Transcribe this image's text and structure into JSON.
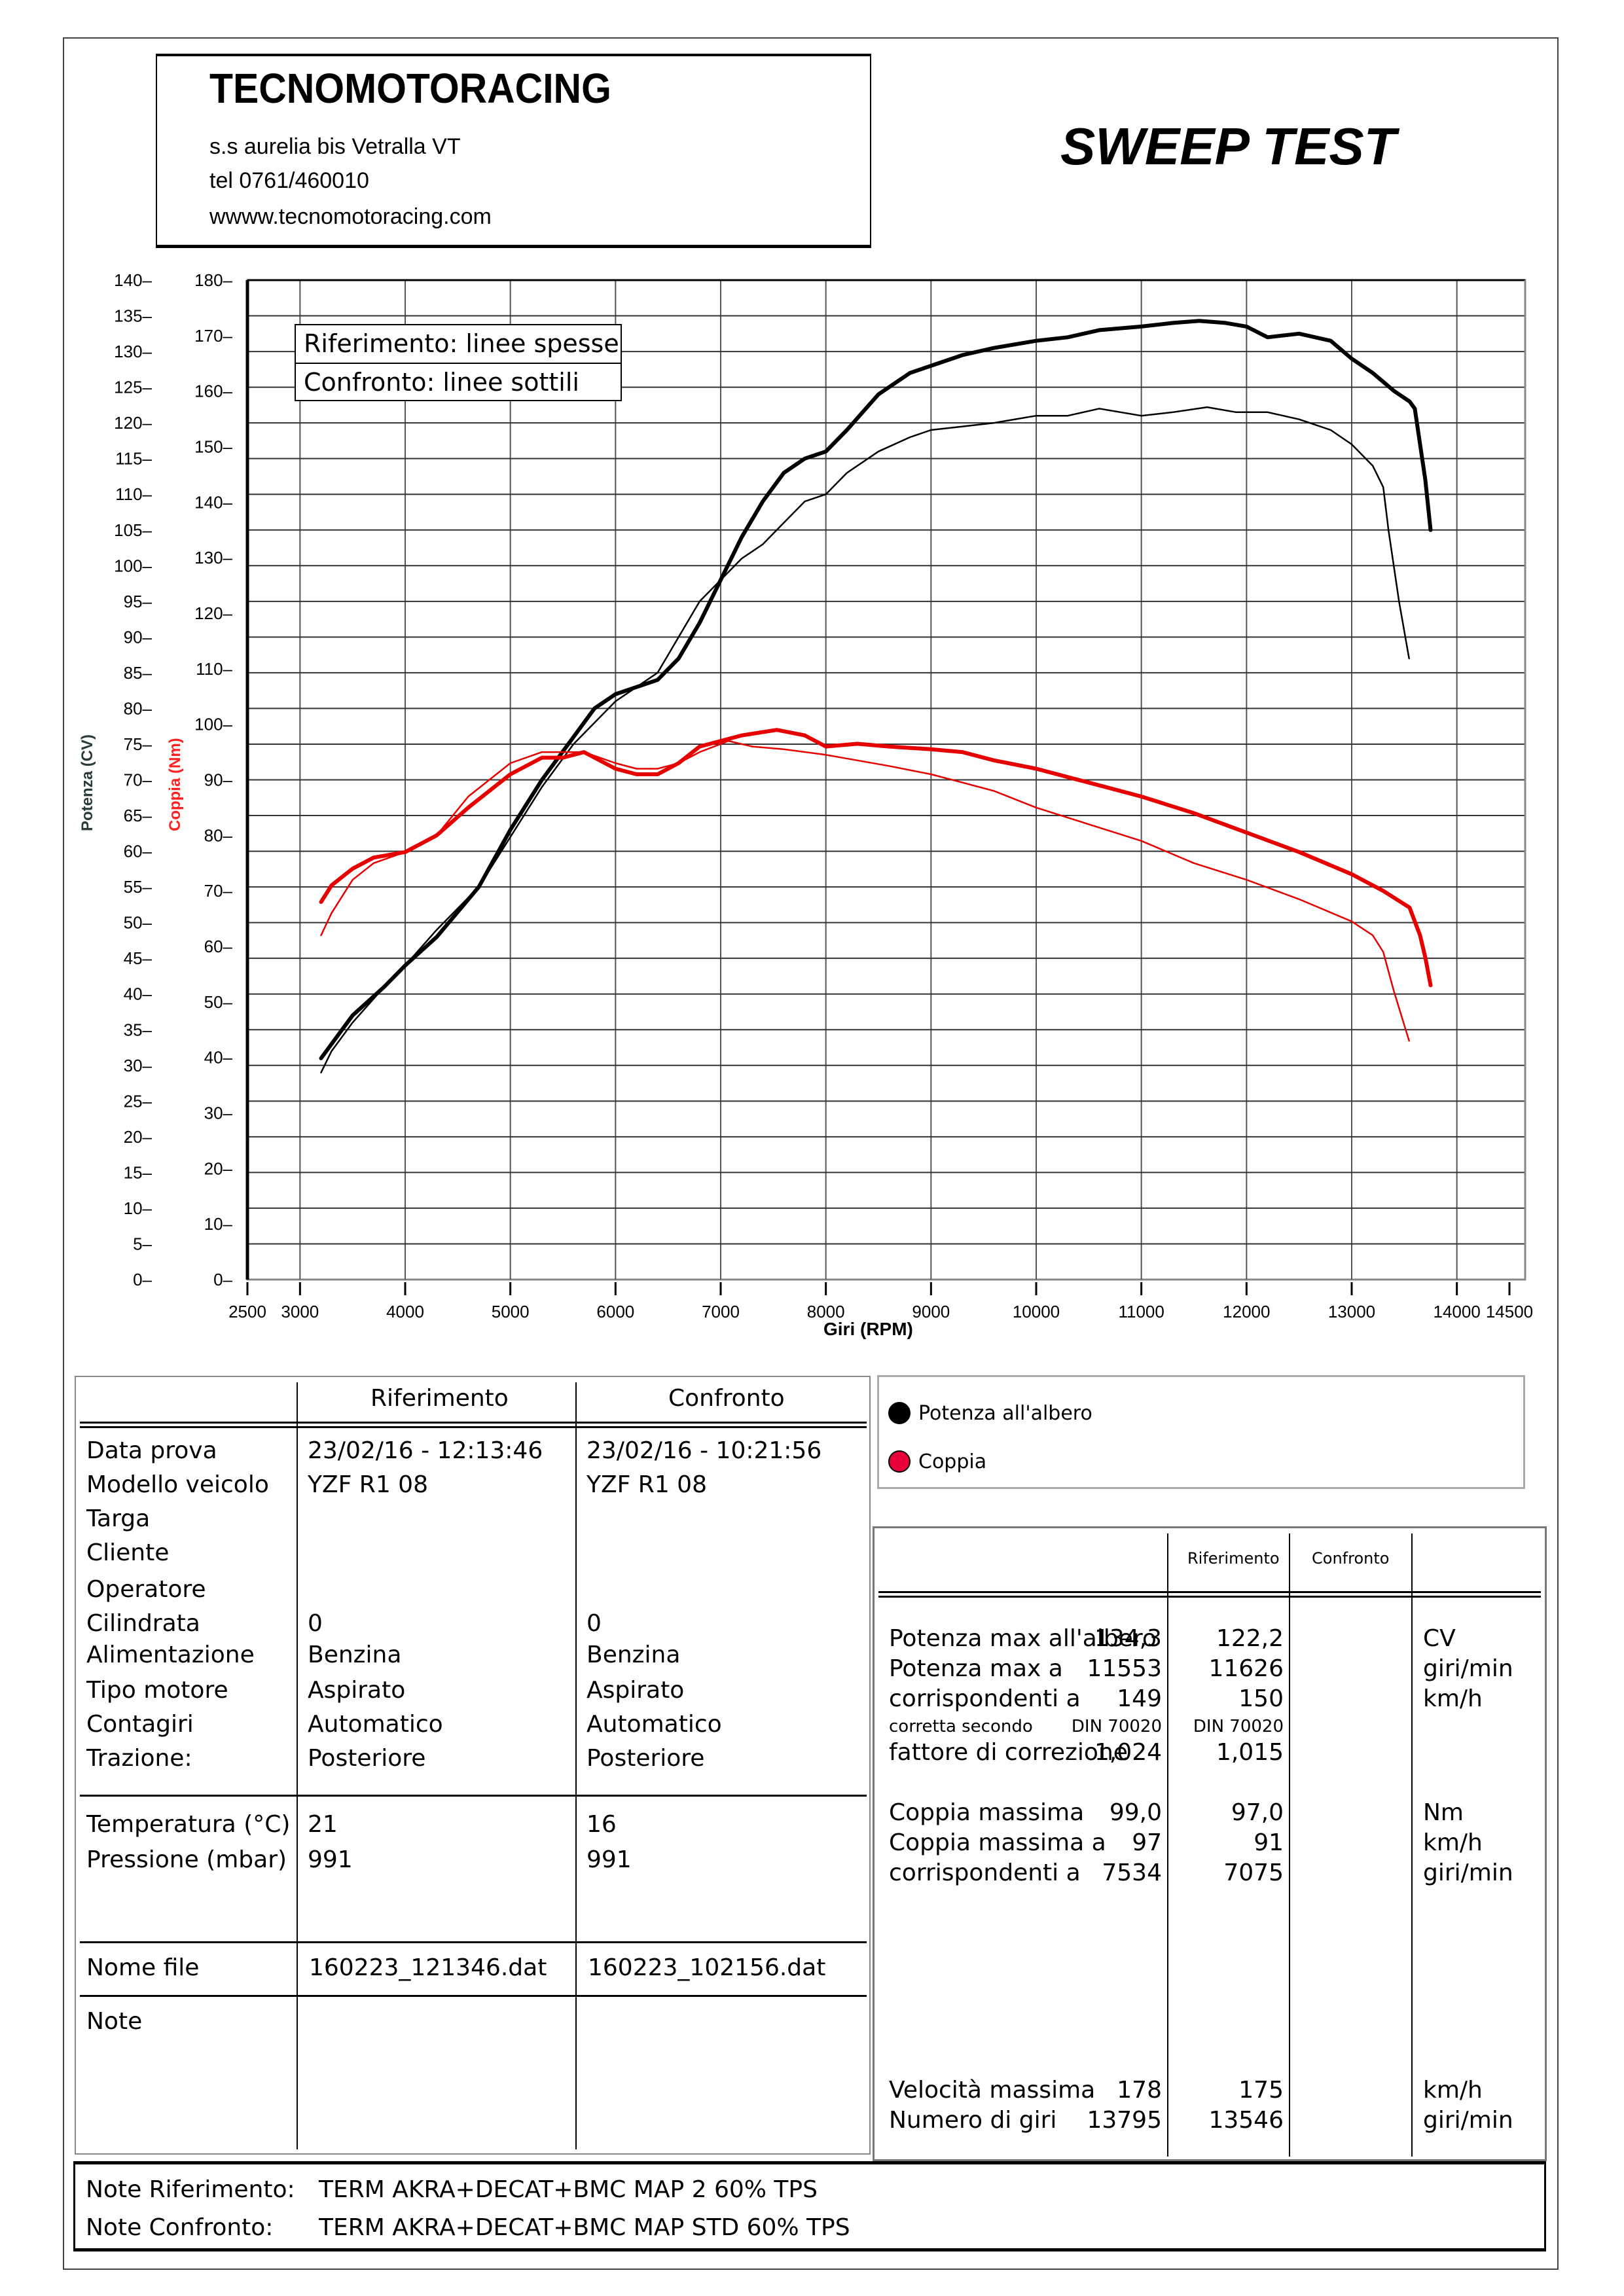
{
  "header": {
    "company_name": "TECNOMOTORACING",
    "address": "s.s aurelia bis  Vetralla  VT",
    "phone": "tel 0761/460010",
    "website": "wwww.tecnomotoracing.com",
    "report_title": "SWEEP TEST"
  },
  "chart_data": {
    "type": "line",
    "title": "SWEEP TEST",
    "xlabel": "Giri (RPM)",
    "ylabel_left": "Potenza (CV)",
    "ylabel_right": "Coppia (Nm)",
    "xlim": [
      2500,
      14500
    ],
    "ylim_power": [
      0,
      140
    ],
    "ylim_torque": [
      0,
      180
    ],
    "grid": true,
    "x_ticks": [
      2500,
      3000,
      4000,
      5000,
      6000,
      7000,
      8000,
      9000,
      10000,
      11000,
      12000,
      13000,
      14000,
      14500
    ],
    "x_tick_labels": [
      "2500",
      "3000",
      "4000",
      "5000",
      "6000",
      "7000",
      "8000",
      "9000",
      "10000",
      "11000",
      "12000",
      "13000",
      "14000",
      "14500"
    ],
    "y_ticks_power": [
      0,
      5,
      10,
      15,
      20,
      25,
      30,
      35,
      40,
      45,
      50,
      55,
      60,
      65,
      70,
      75,
      80,
      85,
      90,
      95,
      100,
      105,
      110,
      115,
      120,
      125,
      130,
      135,
      140
    ],
    "y_ticks_torque": [
      0,
      10,
      20,
      30,
      40,
      50,
      60,
      70,
      80,
      90,
      100,
      110,
      120,
      130,
      140,
      150,
      160,
      170,
      180
    ],
    "overlay_legend": [
      "Riferimento: linee spesse",
      "Confronto: linee sottili"
    ],
    "legend": [
      {
        "label": "Potenza all'albero",
        "color": "#000000"
      },
      {
        "label": "Coppia",
        "color": "#e8003a"
      }
    ],
    "series": [
      {
        "name": "Potenza Riferimento",
        "axis": "power",
        "color": "#000000",
        "style": "thick",
        "x": [
          3200,
          3300,
          3500,
          3800,
          4000,
          4300,
          4700,
          5000,
          5300,
          5600,
          5800,
          6000,
          6200,
          6400,
          6600,
          6800,
          7000,
          7200,
          7400,
          7600,
          7800,
          8000,
          8200,
          8500,
          8800,
          9000,
          9300,
          9600,
          10000,
          10300,
          10600,
          11000,
          11300,
          11550,
          11800,
          12000,
          12200,
          12500,
          12800,
          13000,
          13200,
          13400,
          13550,
          13600,
          13700,
          13750
        ],
        "y": [
          31,
          33,
          37,
          41,
          44,
          48,
          55,
          63,
          70,
          76,
          80,
          82,
          83,
          84,
          87,
          92,
          98,
          104,
          109,
          113,
          115,
          116,
          119,
          124,
          127,
          128,
          129.5,
          130.5,
          131.5,
          132,
          133,
          133.5,
          134,
          134.3,
          134,
          133.5,
          132,
          132.5,
          131.5,
          129,
          127,
          124.5,
          123,
          122,
          112,
          105
        ]
      },
      {
        "name": "Potenza Confronto",
        "axis": "power",
        "color": "#000000",
        "style": "thin",
        "x": [
          3200,
          3300,
          3500,
          3800,
          4000,
          4300,
          4700,
          5000,
          5300,
          5600,
          5800,
          6000,
          6200,
          6400,
          6600,
          6800,
          7000,
          7200,
          7400,
          7600,
          7800,
          8000,
          8200,
          8500,
          8800,
          9000,
          9300,
          9600,
          10000,
          10300,
          10600,
          11000,
          11300,
          11626,
          11900,
          12200,
          12500,
          12800,
          13000,
          13200,
          13300,
          13350,
          13450,
          13546
        ],
        "y": [
          29,
          32,
          36,
          41,
          44,
          49,
          55,
          62,
          69,
          75,
          78,
          81,
          83,
          85,
          90,
          95,
          98,
          101,
          103,
          106,
          109,
          110,
          113,
          116,
          118,
          119,
          119.5,
          120,
          121,
          121,
          122,
          121,
          121.5,
          122.2,
          121.5,
          121.5,
          120.5,
          119,
          117,
          114,
          111,
          105,
          95,
          87
        ]
      },
      {
        "name": "Coppia Riferimento",
        "axis": "torque",
        "color": "#e60000",
        "style": "thick",
        "x": [
          3200,
          3300,
          3500,
          3700,
          4000,
          4300,
          4600,
          5000,
          5300,
          5500,
          5700,
          6000,
          6200,
          6400,
          6600,
          6800,
          7000,
          7200,
          7534,
          7800,
          8000,
          8300,
          8600,
          9000,
          9300,
          9600,
          10000,
          10500,
          11000,
          11500,
          12000,
          12500,
          13000,
          13300,
          13550,
          13650,
          13700,
          13750
        ],
        "y": [
          68,
          71,
          74,
          76,
          77,
          80,
          85,
          91,
          94,
          94,
          95,
          92,
          91,
          91,
          93,
          96,
          97,
          98,
          99,
          98,
          96,
          96.5,
          96,
          95.5,
          95,
          93.5,
          92,
          89.5,
          87,
          84,
          80.5,
          77,
          73,
          70,
          67,
          62,
          58,
          53
        ]
      },
      {
        "name": "Coppia Confronto",
        "axis": "torque",
        "color": "#e60000",
        "style": "thin",
        "x": [
          3200,
          3300,
          3500,
          3700,
          4000,
          4300,
          4600,
          5000,
          5300,
          5500,
          5700,
          6000,
          6200,
          6400,
          6600,
          6800,
          7075,
          7300,
          7600,
          8000,
          8300,
          8600,
          9000,
          9300,
          9600,
          10000,
          10500,
          11000,
          11500,
          12000,
          12500,
          13000,
          13200,
          13300,
          13400,
          13546
        ],
        "y": [
          62,
          66,
          72,
          75,
          77,
          80,
          87,
          93,
          95,
          95,
          95,
          93,
          92,
          92,
          93,
          95,
          97,
          96,
          95.5,
          94.5,
          93.5,
          92.5,
          91,
          89.5,
          88,
          85,
          82,
          79,
          75,
          72,
          68.5,
          64.5,
          62,
          59,
          52,
          43
        ]
      }
    ]
  },
  "info_table": {
    "columns": [
      "",
      "Riferimento",
      "Confronto"
    ],
    "rows": [
      {
        "label": "Data prova",
        "ref": "23/02/16 - 12:13:46",
        "cmp": "23/02/16 - 10:21:56"
      },
      {
        "label": "Modello veicolo",
        "ref": "YZF R1 08",
        "cmp": "YZF R1 08"
      },
      {
        "label": "Targa",
        "ref": "",
        "cmp": ""
      },
      {
        "label": "Cliente",
        "ref": "",
        "cmp": ""
      },
      {
        "label": "Operatore",
        "ref": "",
        "cmp": ""
      },
      {
        "label": "Cilindrata",
        "ref": "0",
        "cmp": "0"
      },
      {
        "label": "Alimentazione",
        "ref": "Benzina",
        "cmp": "Benzina"
      },
      {
        "label": "Tipo motore",
        "ref": "Aspirato",
        "cmp": "Aspirato"
      },
      {
        "label": "Contagiri",
        "ref": "Automatico",
        "cmp": "Automatico"
      },
      {
        "label": "Trazione:",
        "ref": "Posteriore",
        "cmp": "Posteriore"
      }
    ],
    "conditions": [
      {
        "label": "Temperatura (°C)",
        "ref": "21",
        "cmp": "16"
      },
      {
        "label": "Pressione (mbar)",
        "ref": "991",
        "cmp": "991"
      }
    ],
    "file": {
      "label": "Nome file",
      "ref": "160223_121346.dat",
      "cmp": "160223_102156.dat"
    },
    "note": {
      "label": "Note",
      "ref": "",
      "cmp": ""
    }
  },
  "results_table": {
    "columns": [
      "",
      "Riferimento",
      "Confronto",
      ""
    ],
    "power_rows": [
      {
        "label": "Potenza max all'albero",
        "ref": "134,3",
        "cmp": "122,2",
        "unit": "CV"
      },
      {
        "label": "Potenza max a",
        "ref": "11553",
        "cmp": "11626",
        "unit": "giri/min"
      },
      {
        "label": "corrispondenti a",
        "ref": "149",
        "cmp": "150",
        "unit": "km/h"
      },
      {
        "label": "corretta secondo",
        "ref": "DIN 70020",
        "cmp": "DIN 70020",
        "unit": ""
      },
      {
        "label": "fattore di correzione",
        "ref": "1,024",
        "cmp": "1,015",
        "unit": ""
      }
    ],
    "torque_rows": [
      {
        "label": "Coppia massima",
        "ref": "99,0",
        "cmp": "97,0",
        "unit": "Nm"
      },
      {
        "label": "Coppia massima a",
        "ref": "97",
        "cmp": "91",
        "unit": "km/h"
      },
      {
        "label": "corrispondenti a",
        "ref": "7534",
        "cmp": "7075",
        "unit": "giri/min"
      }
    ],
    "speed_rows": [
      {
        "label": "Velocità massima",
        "ref": "178",
        "cmp": "175",
        "unit": "km/h"
      },
      {
        "label": "Numero di giri",
        "ref": "13795",
        "cmp": "13546",
        "unit": "giri/min"
      }
    ]
  },
  "notes": {
    "ref_label": "Note Riferimento:",
    "ref_value": "TERM AKRA+DECAT+BMC MAP 2 60% TPS",
    "cmp_label": "Note Confronto:",
    "cmp_value": "TERM AKRA+DECAT+BMC MAP STD 60% TPS"
  }
}
